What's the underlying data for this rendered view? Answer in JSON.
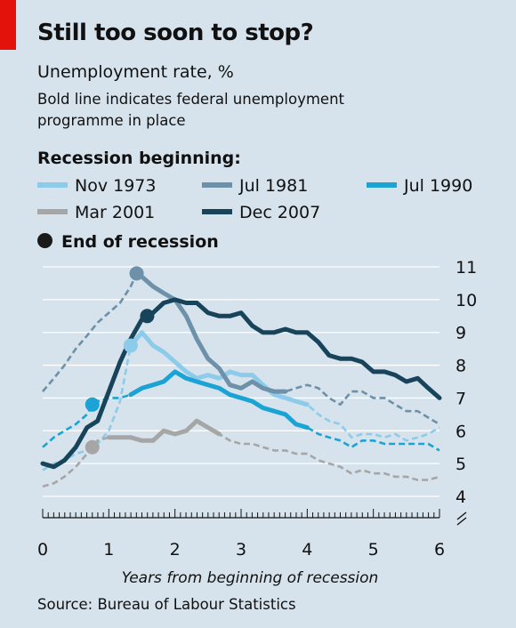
{
  "title": "Still too soon to stop?",
  "subtitle": "Unemployment rate, %",
  "note": "Bold line indicates federal unemployment programme in place",
  "source": "Source: Bureau of Labour Statistics",
  "legend": {
    "heading": "Recession beginning:",
    "end_marker": "End of recession"
  },
  "colors": {
    "background": "#d6e3ec",
    "accent": "#e3120b",
    "grid": "#ffffff"
  },
  "chart_data": {
    "type": "line",
    "xlabel": "Years from beginning of recession",
    "ylabel": "",
    "xlim": [
      0,
      6
    ],
    "ylim": [
      4,
      11
    ],
    "y_axis_break": true,
    "grid": true,
    "xticks": [
      0,
      1,
      2,
      3,
      4,
      5,
      6
    ],
    "yticks": [
      4,
      5,
      6,
      7,
      8,
      9,
      10,
      11
    ],
    "series": [
      {
        "name": "Nov 1973",
        "color": "#8dcbea",
        "end_of_recession": [
          1.33,
          8.6
        ],
        "bold_ranges": [
          [
            1.33,
            4.05
          ]
        ],
        "points": [
          [
            0,
            4.8
          ],
          [
            0.17,
            5.0
          ],
          [
            0.33,
            5.1
          ],
          [
            0.5,
            5.3
          ],
          [
            0.67,
            5.4
          ],
          [
            0.83,
            5.6
          ],
          [
            1.0,
            6.0
          ],
          [
            1.17,
            6.9
          ],
          [
            1.33,
            8.6
          ],
          [
            1.5,
            9.0
          ],
          [
            1.67,
            8.6
          ],
          [
            1.83,
            8.4
          ],
          [
            2.0,
            8.1
          ],
          [
            2.17,
            7.8
          ],
          [
            2.33,
            7.6
          ],
          [
            2.5,
            7.7
          ],
          [
            2.67,
            7.6
          ],
          [
            2.83,
            7.8
          ],
          [
            3.0,
            7.7
          ],
          [
            3.17,
            7.7
          ],
          [
            3.33,
            7.4
          ],
          [
            3.5,
            7.1
          ],
          [
            3.67,
            7.0
          ],
          [
            3.83,
            6.9
          ],
          [
            4.0,
            6.8
          ],
          [
            4.17,
            6.5
          ],
          [
            4.33,
            6.3
          ],
          [
            4.5,
            6.2
          ],
          [
            4.67,
            5.8
          ],
          [
            4.83,
            5.9
          ],
          [
            5.0,
            5.9
          ],
          [
            5.17,
            5.8
          ],
          [
            5.33,
            5.9
          ],
          [
            5.5,
            5.7
          ],
          [
            5.67,
            5.8
          ],
          [
            5.83,
            5.9
          ],
          [
            6.0,
            6.1
          ]
        ]
      },
      {
        "name": "Jul 1981",
        "color": "#6d91a8",
        "end_of_recession": [
          1.42,
          10.8
        ],
        "bold_ranges": [
          [
            1.42,
            3.75
          ]
        ],
        "points": [
          [
            0,
            7.2
          ],
          [
            0.17,
            7.6
          ],
          [
            0.33,
            8.0
          ],
          [
            0.5,
            8.5
          ],
          [
            0.67,
            8.9
          ],
          [
            0.83,
            9.3
          ],
          [
            1.0,
            9.6
          ],
          [
            1.17,
            9.9
          ],
          [
            1.33,
            10.4
          ],
          [
            1.42,
            10.8
          ],
          [
            1.5,
            10.7
          ],
          [
            1.67,
            10.4
          ],
          [
            1.83,
            10.2
          ],
          [
            2.0,
            10.0
          ],
          [
            2.17,
            9.5
          ],
          [
            2.33,
            8.8
          ],
          [
            2.5,
            8.2
          ],
          [
            2.67,
            7.9
          ],
          [
            2.83,
            7.4
          ],
          [
            3.0,
            7.3
          ],
          [
            3.17,
            7.5
          ],
          [
            3.33,
            7.3
          ],
          [
            3.5,
            7.2
          ],
          [
            3.67,
            7.2
          ],
          [
            3.83,
            7.3
          ],
          [
            4.0,
            7.4
          ],
          [
            4.17,
            7.3
          ],
          [
            4.33,
            7.0
          ],
          [
            4.5,
            6.8
          ],
          [
            4.67,
            7.2
          ],
          [
            4.83,
            7.2
          ],
          [
            5.0,
            7.0
          ],
          [
            5.17,
            7.0
          ],
          [
            5.33,
            6.8
          ],
          [
            5.5,
            6.6
          ],
          [
            5.67,
            6.6
          ],
          [
            5.83,
            6.4
          ],
          [
            6.0,
            6.2
          ]
        ]
      },
      {
        "name": "Jul 1990",
        "color": "#1aa3d4",
        "end_of_recession": [
          0.75,
          6.8
        ],
        "bold_ranges": [
          [
            1.33,
            4.0
          ]
        ],
        "points": [
          [
            0,
            5.5
          ],
          [
            0.17,
            5.8
          ],
          [
            0.33,
            6.0
          ],
          [
            0.5,
            6.2
          ],
          [
            0.67,
            6.5
          ],
          [
            0.75,
            6.8
          ],
          [
            0.83,
            6.9
          ],
          [
            1.0,
            7.0
          ],
          [
            1.17,
            7.0
          ],
          [
            1.33,
            7.1
          ],
          [
            1.5,
            7.3
          ],
          [
            1.67,
            7.4
          ],
          [
            1.83,
            7.5
          ],
          [
            2.0,
            7.8
          ],
          [
            2.17,
            7.6
          ],
          [
            2.33,
            7.5
          ],
          [
            2.5,
            7.4
          ],
          [
            2.67,
            7.3
          ],
          [
            2.83,
            7.1
          ],
          [
            3.0,
            7.0
          ],
          [
            3.17,
            6.9
          ],
          [
            3.33,
            6.7
          ],
          [
            3.5,
            6.6
          ],
          [
            3.67,
            6.5
          ],
          [
            3.83,
            6.2
          ],
          [
            4.0,
            6.1
          ],
          [
            4.17,
            5.9
          ],
          [
            4.33,
            5.8
          ],
          [
            4.5,
            5.7
          ],
          [
            4.67,
            5.5
          ],
          [
            4.83,
            5.7
          ],
          [
            5.0,
            5.7
          ],
          [
            5.17,
            5.6
          ],
          [
            5.33,
            5.6
          ],
          [
            5.5,
            5.6
          ],
          [
            5.67,
            5.6
          ],
          [
            5.83,
            5.6
          ],
          [
            6.0,
            5.4
          ]
        ]
      },
      {
        "name": "Mar 2001",
        "color": "#a6a6a6",
        "end_of_recession": [
          0.75,
          5.5
        ],
        "bold_ranges": [
          [
            1.0,
            2.75
          ]
        ],
        "points": [
          [
            0,
            4.3
          ],
          [
            0.17,
            4.4
          ],
          [
            0.33,
            4.6
          ],
          [
            0.5,
            4.9
          ],
          [
            0.67,
            5.3
          ],
          [
            0.75,
            5.5
          ],
          [
            0.83,
            5.7
          ],
          [
            1.0,
            5.8
          ],
          [
            1.17,
            5.8
          ],
          [
            1.33,
            5.8
          ],
          [
            1.5,
            5.7
          ],
          [
            1.67,
            5.7
          ],
          [
            1.83,
            6.0
          ],
          [
            2.0,
            5.9
          ],
          [
            2.17,
            6.0
          ],
          [
            2.33,
            6.3
          ],
          [
            2.5,
            6.1
          ],
          [
            2.67,
            5.9
          ],
          [
            2.83,
            5.7
          ],
          [
            3.0,
            5.6
          ],
          [
            3.17,
            5.6
          ],
          [
            3.33,
            5.5
          ],
          [
            3.5,
            5.4
          ],
          [
            3.67,
            5.4
          ],
          [
            3.83,
            5.3
          ],
          [
            4.0,
            5.3
          ],
          [
            4.17,
            5.1
          ],
          [
            4.33,
            5.0
          ],
          [
            4.5,
            4.9
          ],
          [
            4.67,
            4.7
          ],
          [
            4.83,
            4.8
          ],
          [
            5.0,
            4.7
          ],
          [
            5.17,
            4.7
          ],
          [
            5.33,
            4.6
          ],
          [
            5.5,
            4.6
          ],
          [
            5.67,
            4.5
          ],
          [
            5.83,
            4.5
          ],
          [
            6.0,
            4.6
          ]
        ]
      },
      {
        "name": "Dec 2007",
        "color": "#17445a",
        "end_of_recession": [
          1.58,
          9.5
        ],
        "bold_ranges": [
          [
            0,
            6.0
          ]
        ],
        "points": [
          [
            0,
            5.0
          ],
          [
            0.17,
            4.9
          ],
          [
            0.33,
            5.1
          ],
          [
            0.5,
            5.5
          ],
          [
            0.67,
            6.1
          ],
          [
            0.83,
            6.3
          ],
          [
            1.0,
            7.2
          ],
          [
            1.17,
            8.1
          ],
          [
            1.33,
            8.8
          ],
          [
            1.5,
            9.4
          ],
          [
            1.58,
            9.5
          ],
          [
            1.67,
            9.6
          ],
          [
            1.83,
            9.9
          ],
          [
            2.0,
            10.0
          ],
          [
            2.17,
            9.9
          ],
          [
            2.33,
            9.9
          ],
          [
            2.5,
            9.6
          ],
          [
            2.67,
            9.5
          ],
          [
            2.83,
            9.5
          ],
          [
            3.0,
            9.6
          ],
          [
            3.17,
            9.2
          ],
          [
            3.33,
            9.0
          ],
          [
            3.5,
            9.0
          ],
          [
            3.67,
            9.1
          ],
          [
            3.83,
            9.0
          ],
          [
            4.0,
            9.0
          ],
          [
            4.17,
            8.7
          ],
          [
            4.33,
            8.3
          ],
          [
            4.5,
            8.2
          ],
          [
            4.67,
            8.2
          ],
          [
            4.83,
            8.1
          ],
          [
            5.0,
            7.8
          ],
          [
            5.17,
            7.8
          ],
          [
            5.33,
            7.7
          ],
          [
            5.5,
            7.5
          ],
          [
            5.67,
            7.6
          ],
          [
            5.83,
            7.3
          ],
          [
            6.0,
            7.0
          ]
        ]
      }
    ]
  }
}
